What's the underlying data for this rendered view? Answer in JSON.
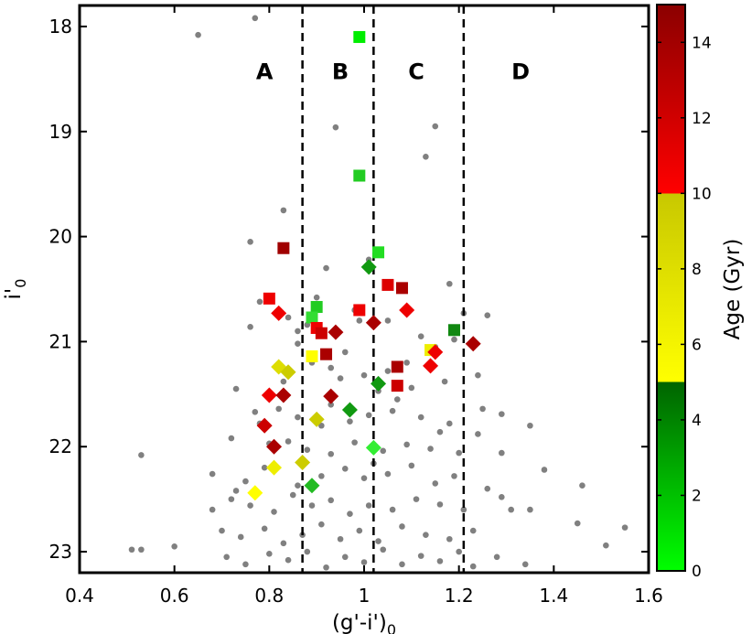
{
  "chart_data": {
    "type": "scatter",
    "xlabel": "(g'-i')",
    "xlabel_sub": "0",
    "ylabel": "i'",
    "ylabel_sub": "0",
    "xlim": [
      0.4,
      1.6
    ],
    "ylim": [
      23.2,
      17.8
    ],
    "xticks": [
      "0.4",
      "0.6",
      "0.8",
      "1",
      "1.2",
      "1.4",
      "1.6"
    ],
    "yticks": [
      "18",
      "19",
      "20",
      "21",
      "22",
      "23"
    ],
    "region_boundaries": [
      0.87,
      1.02,
      1.21
    ],
    "regions": [
      {
        "label": "A",
        "x": 0.79,
        "y": 18.5
      },
      {
        "label": "B",
        "x": 0.95,
        "y": 18.5
      },
      {
        "label": "C",
        "x": 1.11,
        "y": 18.5
      },
      {
        "label": "D",
        "x": 1.33,
        "y": 18.5
      }
    ],
    "colorbar": {
      "label": "Age (Gyr)",
      "range": [
        0,
        15
      ],
      "ticks": [
        "0",
        "2",
        "4",
        "6",
        "8",
        "10",
        "12",
        "14"
      ],
      "stops": [
        {
          "value": 0,
          "color": "#00ff00"
        },
        {
          "value": 5,
          "color": "#006400"
        },
        {
          "value": 5,
          "color": "#ffff00"
        },
        {
          "value": 10,
          "color": "#c8c800"
        },
        {
          "value": 10,
          "color": "#ff0000"
        },
        {
          "value": 15,
          "color": "#8b0000"
        }
      ]
    },
    "background_points_color": "#808080",
    "background_points": [
      [
        0.65,
        18.08
      ],
      [
        0.77,
        17.92
      ],
      [
        0.94,
        18.96
      ],
      [
        1.15,
        18.95
      ],
      [
        1.13,
        19.24
      ],
      [
        0.83,
        19.75
      ],
      [
        0.76,
        20.05
      ],
      [
        1.01,
        20.22
      ],
      [
        1.18,
        20.45
      ],
      [
        0.92,
        20.3
      ],
      [
        0.9,
        20.58
      ],
      [
        0.78,
        20.62
      ],
      [
        0.84,
        20.77
      ],
      [
        0.86,
        20.9
      ],
      [
        0.76,
        20.86
      ],
      [
        0.88,
        20.84
      ],
      [
        0.98,
        20.7
      ],
      [
        1.05,
        20.8
      ],
      [
        1.21,
        20.73
      ],
      [
        1.26,
        20.75
      ],
      [
        1.19,
        20.98
      ],
      [
        1.12,
        20.95
      ],
      [
        1.15,
        21.05
      ],
      [
        0.89,
        21.2
      ],
      [
        0.93,
        21.25
      ],
      [
        0.95,
        21.35
      ],
      [
        1.0,
        21.32
      ],
      [
        1.05,
        21.28
      ],
      [
        1.03,
        21.47
      ],
      [
        1.1,
        21.44
      ],
      [
        1.17,
        21.38
      ],
      [
        1.24,
        21.32
      ],
      [
        0.73,
        21.45
      ],
      [
        0.82,
        21.64
      ],
      [
        0.77,
        21.67
      ],
      [
        0.86,
        21.72
      ],
      [
        0.91,
        21.8
      ],
      [
        0.97,
        21.76
      ],
      [
        1.01,
        21.7
      ],
      [
        1.06,
        21.66
      ],
      [
        1.12,
        21.72
      ],
      [
        1.18,
        21.78
      ],
      [
        1.25,
        21.64
      ],
      [
        1.29,
        21.69
      ],
      [
        0.72,
        21.92
      ],
      [
        0.8,
        21.97
      ],
      [
        0.84,
        21.95
      ],
      [
        0.88,
        22.03
      ],
      [
        0.93,
        22.07
      ],
      [
        0.98,
        21.96
      ],
      [
        1.04,
        22.04
      ],
      [
        1.09,
        21.98
      ],
      [
        1.14,
        22.02
      ],
      [
        1.2,
        22.06
      ],
      [
        1.24,
        21.88
      ],
      [
        0.53,
        22.08
      ],
      [
        0.68,
        22.26
      ],
      [
        0.75,
        22.33
      ],
      [
        0.79,
        22.2
      ],
      [
        0.86,
        22.37
      ],
      [
        0.91,
        22.28
      ],
      [
        0.96,
        22.21
      ],
      [
        1.0,
        22.3
      ],
      [
        1.05,
        22.26
      ],
      [
        1.1,
        22.18
      ],
      [
        1.15,
        22.35
      ],
      [
        1.19,
        22.28
      ],
      [
        1.29,
        22.06
      ],
      [
        0.68,
        22.6
      ],
      [
        0.72,
        22.5
      ],
      [
        0.76,
        22.56
      ],
      [
        0.81,
        22.62
      ],
      [
        0.85,
        22.46
      ],
      [
        0.89,
        22.56
      ],
      [
        0.93,
        22.51
      ],
      [
        0.97,
        22.64
      ],
      [
        1.01,
        22.56
      ],
      [
        1.06,
        22.6
      ],
      [
        1.11,
        22.5
      ],
      [
        1.16,
        22.55
      ],
      [
        1.21,
        22.6
      ],
      [
        1.31,
        22.6
      ],
      [
        1.35,
        22.6
      ],
      [
        0.7,
        22.8
      ],
      [
        0.74,
        22.86
      ],
      [
        0.79,
        22.78
      ],
      [
        0.83,
        22.92
      ],
      [
        0.87,
        22.84
      ],
      [
        0.91,
        22.74
      ],
      [
        0.95,
        22.88
      ],
      [
        0.99,
        22.8
      ],
      [
        1.03,
        22.9
      ],
      [
        1.08,
        22.76
      ],
      [
        1.13,
        22.84
      ],
      [
        1.18,
        22.88
      ],
      [
        1.23,
        22.8
      ],
      [
        1.45,
        22.73
      ],
      [
        1.55,
        22.77
      ],
      [
        0.51,
        22.98
      ],
      [
        0.53,
        22.98
      ],
      [
        0.6,
        22.95
      ],
      [
        0.71,
        23.05
      ],
      [
        0.75,
        23.12
      ],
      [
        0.8,
        23.02
      ],
      [
        0.84,
        23.08
      ],
      [
        0.88,
        23.0
      ],
      [
        0.92,
        23.15
      ],
      [
        0.96,
        23.05
      ],
      [
        1.0,
        23.1
      ],
      [
        1.04,
        22.98
      ],
      [
        1.08,
        23.12
      ],
      [
        1.12,
        23.04
      ],
      [
        1.16,
        23.09
      ],
      [
        1.2,
        23.0
      ],
      [
        1.23,
        23.14
      ],
      [
        1.28,
        23.05
      ],
      [
        1.34,
        23.12
      ],
      [
        1.51,
        22.94
      ],
      [
        1.46,
        22.37
      ],
      [
        0.99,
        20.8
      ],
      [
        0.86,
        21.02
      ],
      [
        0.96,
        21.1
      ],
      [
        1.09,
        21.2
      ],
      [
        0.83,
        21.38
      ],
      [
        1.07,
        21.55
      ],
      [
        0.93,
        21.6
      ],
      [
        0.78,
        21.78
      ],
      [
        1.16,
        21.86
      ],
      [
        1.35,
        21.8
      ],
      [
        0.87,
        22.18
      ],
      [
        1.02,
        22.16
      ],
      [
        0.73,
        22.42
      ],
      [
        1.26,
        22.4
      ],
      [
        1.29,
        22.48
      ],
      [
        1.38,
        22.22
      ]
    ],
    "series": [
      {
        "name": "squares",
        "marker": "square",
        "points": [
          {
            "x": 0.99,
            "y": 18.1,
            "color": "#00ee00"
          },
          {
            "x": 0.99,
            "y": 19.42,
            "color": "#22cc22"
          },
          {
            "x": 1.03,
            "y": 20.15,
            "color": "#22dd22"
          },
          {
            "x": 0.83,
            "y": 20.11,
            "color": "#a00000"
          },
          {
            "x": 0.8,
            "y": 20.59,
            "color": "#ee0000"
          },
          {
            "x": 0.9,
            "y": 20.67,
            "color": "#22cc22"
          },
          {
            "x": 0.89,
            "y": 20.77,
            "color": "#33dd33"
          },
          {
            "x": 0.9,
            "y": 20.87,
            "color": "#ee0000"
          },
          {
            "x": 0.91,
            "y": 20.92,
            "color": "#cc0000"
          },
          {
            "x": 1.05,
            "y": 20.46,
            "color": "#dd0000"
          },
          {
            "x": 1.08,
            "y": 20.49,
            "color": "#aa0000"
          },
          {
            "x": 0.99,
            "y": 20.7,
            "color": "#ee0000"
          },
          {
            "x": 0.92,
            "y": 21.12,
            "color": "#aa0000"
          },
          {
            "x": 0.89,
            "y": 21.14,
            "color": "#ffff00"
          },
          {
            "x": 1.07,
            "y": 21.24,
            "color": "#aa0000"
          },
          {
            "x": 1.07,
            "y": 21.42,
            "color": "#cc0000"
          },
          {
            "x": 1.14,
            "y": 21.08,
            "color": "#eeee00"
          },
          {
            "x": 1.19,
            "y": 20.89,
            "color": "#118811"
          }
        ]
      },
      {
        "name": "diamonds",
        "marker": "diamond",
        "points": [
          {
            "x": 1.01,
            "y": 20.29,
            "color": "#119911"
          },
          {
            "x": 0.82,
            "y": 20.73,
            "color": "#ee0000"
          },
          {
            "x": 0.94,
            "y": 20.91,
            "color": "#aa0000"
          },
          {
            "x": 1.02,
            "y": 20.82,
            "color": "#aa0000"
          },
          {
            "x": 1.09,
            "y": 20.7,
            "color": "#ee0000"
          },
          {
            "x": 1.23,
            "y": 21.02,
            "color": "#aa0000"
          },
          {
            "x": 0.82,
            "y": 21.24,
            "color": "#dddd00"
          },
          {
            "x": 0.84,
            "y": 21.29,
            "color": "#cccc00"
          },
          {
            "x": 1.15,
            "y": 21.1,
            "color": "#ee0000"
          },
          {
            "x": 1.14,
            "y": 21.23,
            "color": "#ee0000"
          },
          {
            "x": 1.03,
            "y": 21.4,
            "color": "#119911"
          },
          {
            "x": 0.8,
            "y": 21.51,
            "color": "#ee0000"
          },
          {
            "x": 0.83,
            "y": 21.51,
            "color": "#aa0000"
          },
          {
            "x": 0.93,
            "y": 21.52,
            "color": "#aa0000"
          },
          {
            "x": 0.97,
            "y": 21.65,
            "color": "#119911"
          },
          {
            "x": 0.9,
            "y": 21.74,
            "color": "#cccc00"
          },
          {
            "x": 0.79,
            "y": 21.8,
            "color": "#cc0000"
          },
          {
            "x": 0.81,
            "y": 22.0,
            "color": "#aa0000"
          },
          {
            "x": 1.02,
            "y": 22.01,
            "color": "#33ee33"
          },
          {
            "x": 0.81,
            "y": 22.2,
            "color": "#eeee00"
          },
          {
            "x": 0.87,
            "y": 22.15,
            "color": "#cccc00"
          },
          {
            "x": 0.89,
            "y": 22.37,
            "color": "#22bb22"
          },
          {
            "x": 0.77,
            "y": 22.44,
            "color": "#ffff00"
          }
        ]
      }
    ]
  }
}
